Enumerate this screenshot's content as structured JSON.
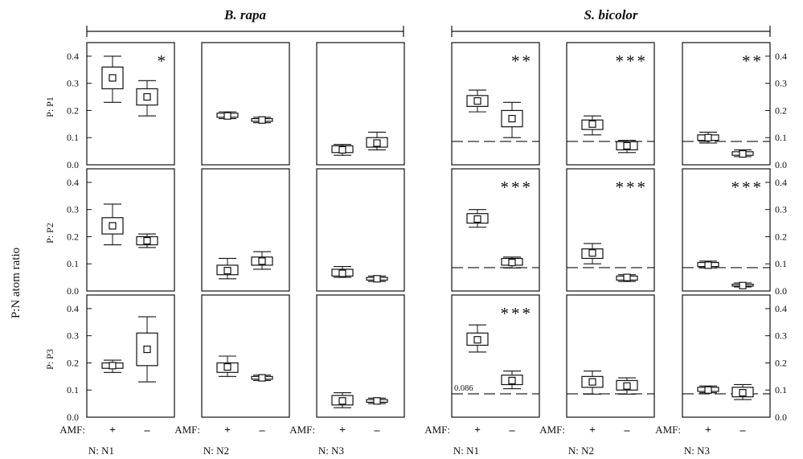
{
  "figure": {
    "species_left": "B. rapa",
    "species_right": "S. bicolor",
    "ylabel": "P:N atom ratio",
    "amf_label": "AMF:",
    "amf_plus": "+",
    "amf_minus": "–",
    "threshold_label": "0.086"
  },
  "chart_data": {
    "type": "boxplot",
    "ylim": [
      0,
      0.45
    ],
    "yticks": [
      "0.0",
      "0.1",
      "0.2",
      "0.3",
      "0.4"
    ],
    "threshold": 0.086,
    "rows": [
      "P: P1",
      "P: P2",
      "P: P3"
    ],
    "cols": [
      "N: N1",
      "N: N2",
      "N: N3"
    ],
    "species": [
      "B. rapa",
      "S. bicolor"
    ],
    "panels": [
      {
        "species": 0,
        "row": 0,
        "col": 0,
        "sig": "*",
        "threshold": false,
        "boxes": [
          {
            "amf": "+",
            "wl": 0.23,
            "q1": 0.28,
            "med": 0.32,
            "q3": 0.36,
            "wh": 0.4
          },
          {
            "amf": "–",
            "wl": 0.18,
            "q1": 0.22,
            "med": 0.25,
            "q3": 0.28,
            "wh": 0.31
          }
        ]
      },
      {
        "species": 0,
        "row": 0,
        "col": 1,
        "sig": "",
        "threshold": false,
        "boxes": [
          {
            "amf": "+",
            "wl": 0.17,
            "q1": 0.175,
            "med": 0.18,
            "q3": 0.19,
            "wh": 0.195
          },
          {
            "amf": "–",
            "wl": 0.155,
            "q1": 0.16,
            "med": 0.165,
            "q3": 0.17,
            "wh": 0.175
          }
        ]
      },
      {
        "species": 0,
        "row": 0,
        "col": 2,
        "sig": "",
        "threshold": false,
        "boxes": [
          {
            "amf": "+",
            "wl": 0.035,
            "q1": 0.045,
            "med": 0.055,
            "q3": 0.07,
            "wh": 0.075
          },
          {
            "amf": "–",
            "wl": 0.055,
            "q1": 0.065,
            "med": 0.08,
            "q3": 0.1,
            "wh": 0.12
          }
        ]
      },
      {
        "species": 0,
        "row": 1,
        "col": 0,
        "sig": "",
        "threshold": false,
        "boxes": [
          {
            "amf": "+",
            "wl": 0.17,
            "q1": 0.21,
            "med": 0.24,
            "q3": 0.27,
            "wh": 0.32
          },
          {
            "amf": "–",
            "wl": 0.16,
            "q1": 0.17,
            "med": 0.185,
            "q3": 0.2,
            "wh": 0.21
          }
        ]
      },
      {
        "species": 0,
        "row": 1,
        "col": 1,
        "sig": "",
        "threshold": false,
        "boxes": [
          {
            "amf": "+",
            "wl": 0.045,
            "q1": 0.06,
            "med": 0.075,
            "q3": 0.095,
            "wh": 0.12
          },
          {
            "amf": "–",
            "wl": 0.08,
            "q1": 0.095,
            "med": 0.11,
            "q3": 0.125,
            "wh": 0.145
          }
        ]
      },
      {
        "species": 0,
        "row": 1,
        "col": 2,
        "sig": "",
        "threshold": false,
        "boxes": [
          {
            "amf": "+",
            "wl": 0.05,
            "q1": 0.055,
            "med": 0.065,
            "q3": 0.08,
            "wh": 0.09
          },
          {
            "amf": "–",
            "wl": 0.035,
            "q1": 0.04,
            "med": 0.045,
            "q3": 0.05,
            "wh": 0.055
          }
        ]
      },
      {
        "species": 0,
        "row": 2,
        "col": 0,
        "sig": "",
        "threshold": false,
        "boxes": [
          {
            "amf": "+",
            "wl": 0.165,
            "q1": 0.18,
            "med": 0.19,
            "q3": 0.2,
            "wh": 0.21
          },
          {
            "amf": "–",
            "wl": 0.13,
            "q1": 0.19,
            "med": 0.25,
            "q3": 0.31,
            "wh": 0.37
          }
        ]
      },
      {
        "species": 0,
        "row": 2,
        "col": 1,
        "sig": "",
        "threshold": false,
        "boxes": [
          {
            "amf": "+",
            "wl": 0.15,
            "q1": 0.165,
            "med": 0.185,
            "q3": 0.2,
            "wh": 0.225
          },
          {
            "amf": "–",
            "wl": 0.135,
            "q1": 0.14,
            "med": 0.145,
            "q3": 0.15,
            "wh": 0.155
          }
        ]
      },
      {
        "species": 0,
        "row": 2,
        "col": 2,
        "sig": "",
        "threshold": false,
        "boxes": [
          {
            "amf": "+",
            "wl": 0.035,
            "q1": 0.045,
            "med": 0.06,
            "q3": 0.08,
            "wh": 0.09
          },
          {
            "amf": "–",
            "wl": 0.05,
            "q1": 0.055,
            "med": 0.06,
            "q3": 0.065,
            "wh": 0.07
          }
        ]
      },
      {
        "species": 1,
        "row": 0,
        "col": 0,
        "sig": "**",
        "threshold": true,
        "boxes": [
          {
            "amf": "+",
            "wl": 0.195,
            "q1": 0.215,
            "med": 0.235,
            "q3": 0.255,
            "wh": 0.275
          },
          {
            "amf": "–",
            "wl": 0.1,
            "q1": 0.14,
            "med": 0.17,
            "q3": 0.2,
            "wh": 0.23
          }
        ]
      },
      {
        "species": 1,
        "row": 0,
        "col": 1,
        "sig": "***",
        "threshold": true,
        "boxes": [
          {
            "amf": "+",
            "wl": 0.11,
            "q1": 0.13,
            "med": 0.15,
            "q3": 0.165,
            "wh": 0.18
          },
          {
            "amf": "–",
            "wl": 0.045,
            "q1": 0.055,
            "med": 0.07,
            "q3": 0.085,
            "wh": 0.09
          }
        ]
      },
      {
        "species": 1,
        "row": 0,
        "col": 2,
        "sig": "**",
        "threshold": true,
        "boxes": [
          {
            "amf": "+",
            "wl": 0.08,
            "q1": 0.09,
            "med": 0.1,
            "q3": 0.11,
            "wh": 0.12
          },
          {
            "amf": "–",
            "wl": 0.03,
            "q1": 0.035,
            "med": 0.04,
            "q3": 0.048,
            "wh": 0.055
          }
        ]
      },
      {
        "species": 1,
        "row": 1,
        "col": 0,
        "sig": "***",
        "threshold": true,
        "boxes": [
          {
            "amf": "+",
            "wl": 0.235,
            "q1": 0.25,
            "med": 0.265,
            "q3": 0.285,
            "wh": 0.3
          },
          {
            "amf": "–",
            "wl": 0.085,
            "q1": 0.095,
            "med": 0.105,
            "q3": 0.12,
            "wh": 0.125
          }
        ]
      },
      {
        "species": 1,
        "row": 1,
        "col": 1,
        "sig": "***",
        "threshold": true,
        "boxes": [
          {
            "amf": "+",
            "wl": 0.1,
            "q1": 0.12,
            "med": 0.14,
            "q3": 0.155,
            "wh": 0.175
          },
          {
            "amf": "–",
            "wl": 0.035,
            "q1": 0.04,
            "med": 0.05,
            "q3": 0.055,
            "wh": 0.06
          }
        ]
      },
      {
        "species": 1,
        "row": 1,
        "col": 2,
        "sig": "***",
        "threshold": true,
        "boxes": [
          {
            "amf": "+",
            "wl": 0.085,
            "q1": 0.09,
            "med": 0.095,
            "q3": 0.105,
            "wh": 0.11
          },
          {
            "amf": "–",
            "wl": 0.015,
            "q1": 0.018,
            "med": 0.02,
            "q3": 0.025,
            "wh": 0.03
          }
        ]
      },
      {
        "species": 1,
        "row": 2,
        "col": 0,
        "sig": "***",
        "threshold": true,
        "boxes": [
          {
            "amf": "+",
            "wl": 0.24,
            "q1": 0.265,
            "med": 0.285,
            "q3": 0.31,
            "wh": 0.34
          },
          {
            "amf": "–",
            "wl": 0.105,
            "q1": 0.12,
            "med": 0.135,
            "q3": 0.155,
            "wh": 0.17
          }
        ]
      },
      {
        "species": 1,
        "row": 2,
        "col": 1,
        "sig": "",
        "threshold": true,
        "boxes": [
          {
            "amf": "+",
            "wl": 0.085,
            "q1": 0.11,
            "med": 0.13,
            "q3": 0.15,
            "wh": 0.17
          },
          {
            "amf": "–",
            "wl": 0.085,
            "q1": 0.1,
            "med": 0.115,
            "q3": 0.135,
            "wh": 0.145
          }
        ]
      },
      {
        "species": 1,
        "row": 2,
        "col": 2,
        "sig": "",
        "threshold": true,
        "boxes": [
          {
            "amf": "+",
            "wl": 0.09,
            "q1": 0.095,
            "med": 0.1,
            "q3": 0.11,
            "wh": 0.115
          },
          {
            "amf": "–",
            "wl": 0.065,
            "q1": 0.075,
            "med": 0.09,
            "q3": 0.11,
            "wh": 0.12
          }
        ]
      }
    ]
  }
}
